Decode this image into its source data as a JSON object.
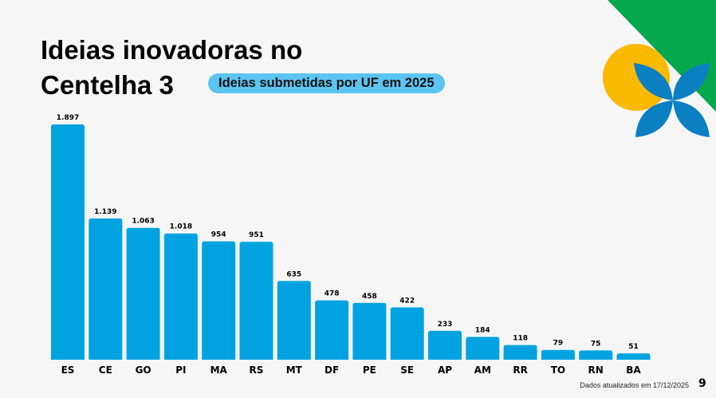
{
  "title_line1": "Ideias inovadoras no",
  "title_line2": "Centelha 3",
  "subtitle_badge": "Ideias submetidas por UF em 2025",
  "footer_note": "Dados atualizados em 17/12/2025",
  "page_number": "9",
  "colors": {
    "bar": "#00a3e0",
    "badge": "#5bc4f1",
    "green": "#05a84c",
    "yellow": "#fbb900",
    "blue": "#0a7fc2"
  },
  "chart_data": {
    "type": "bar",
    "categories": [
      "ES",
      "CE",
      "GO",
      "PI",
      "MA",
      "RS",
      "MT",
      "DF",
      "PE",
      "SE",
      "AP",
      "AM",
      "RR",
      "TO",
      "RN",
      "BA"
    ],
    "values": [
      1897,
      1139,
      1063,
      1018,
      954,
      951,
      635,
      478,
      458,
      422,
      233,
      184,
      118,
      79,
      75,
      51
    ],
    "data_labels": [
      "1.897",
      "1.139",
      "1.063",
      "1.018",
      "954",
      "951",
      "635",
      "478",
      "458",
      "422",
      "233",
      "184",
      "118",
      "79",
      "75",
      "51"
    ],
    "title": "Ideias submetidas por UF em 2025",
    "grid": false,
    "legend": "none"
  }
}
